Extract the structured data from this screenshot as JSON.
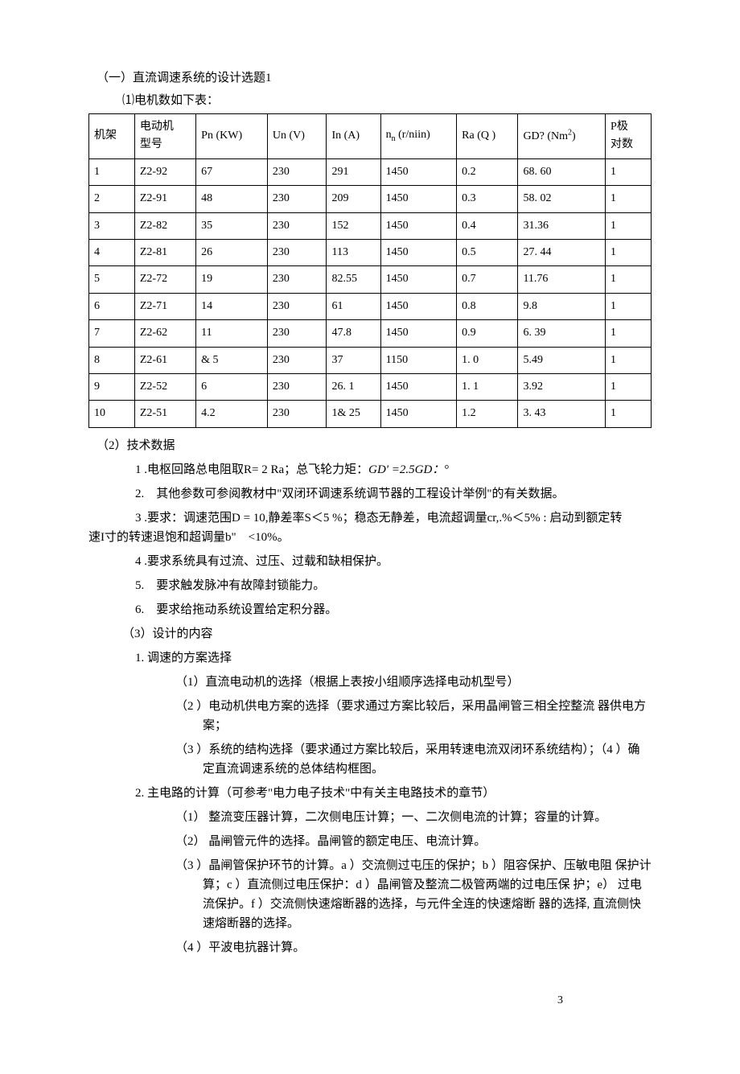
{
  "heading": "（一）直流调速系统的设计选题1",
  "subheading": "⑴电机数如下表：",
  "table": {
    "columns": [
      "机架",
      "电动机\n型号",
      "Pn (KW)",
      "Un (V)",
      "In (A)",
      "nₙ (r/niin)",
      "Ra (Q )",
      "GD? (Nm²)",
      "P极\n对数"
    ],
    "rows": [
      [
        "1",
        "Z2-92",
        "67",
        "230",
        "291",
        "1450",
        "0.2",
        "68. 60",
        "1"
      ],
      [
        "2",
        "Z2-91",
        "48",
        "230",
        "209",
        "1450",
        "0.3",
        "58. 02",
        "1"
      ],
      [
        "3",
        "Z2-82",
        "35",
        "230",
        "152",
        "1450",
        "0.4",
        "31.36",
        "1"
      ],
      [
        "4",
        "Z2-81",
        "26",
        "230",
        "113",
        "1450",
        "0.5",
        "27. 44",
        "1"
      ],
      [
        "5",
        "Z2-72",
        "19",
        "230",
        "82.55",
        "1450",
        "0.7",
        "11.76",
        "1"
      ],
      [
        "6",
        "Z2-71",
        "14",
        "230",
        "61",
        "1450",
        "0.8",
        "9.8",
        "1"
      ],
      [
        "7",
        "Z2-62",
        "11",
        "230",
        "47.8",
        "1450",
        "0.9",
        "6. 39",
        "1"
      ],
      [
        "8",
        "Z2-61",
        "& 5",
        "230",
        "37",
        "1150",
        "1. 0",
        "5.49",
        "1"
      ],
      [
        "9",
        "Z2-52",
        "6",
        "230",
        "26. 1",
        "1450",
        "1. 1",
        "3.92",
        "1"
      ],
      [
        "10",
        "Z2-51",
        "4.2",
        "230",
        "1& 25",
        "1450",
        "1.2",
        "3. 43",
        "1"
      ]
    ],
    "border_color": "#000000",
    "font_size": 14
  },
  "section2_label": "（2）技术数据",
  "items2": {
    "i1_a": "1 .电枢回路总电阻取R= 2 Ra；总飞轮力矩：",
    "i1_b": "GD' =2.5GD：",
    "i1_c": "°",
    "i2": "2.　其他参数可参阅教材中\"双闭环调速系统调节器的工程设计举例\"的有关数据。",
    "i3_line1": "3 .要求：调速范围D = 10,静差率S＜5 %；稳态无静差，电流超调量cr,.%＜5% : 启动到额定转",
    "i3_line2": "速I寸的转速退饱和超调量b\"　<10%。",
    "i4": "4 .要求系统具有过流、过压、过载和缺相保护。",
    "i5": "5.　要求触发脉冲有故障封锁能力。",
    "i6": "6.　要求给拖动系统设置给定积分器。"
  },
  "section3_label": "（3）设计的内容",
  "sub1_label": "1. 调速的方案选择",
  "sub1_items": {
    "a": "（1）直流电动机的选择（根据上表按小组顺序选择电动机型号）",
    "b": "（2 ）电动机供电方案的选择（要求通过方案比较后，采用晶闸管三相全控整流 器供电方案；",
    "c": "（3 ）系统的结构选择（要求通过方案比较后，采用转速电流双闭环系统结构）；（4 ）确定直流调速系统的总体结构框图。"
  },
  "sub2_label": "2. 主电路的计算（可参考\"电力电子技术\"中有关主电路技术的章节）",
  "sub2_items": {
    "a": "（1）  整流变压器计算，二次侧电压计算；一、二次侧电流的计算；容量的计算。",
    "b": "（2）  晶闸管元件的选择。晶闸管的额定电压、电流计算。",
    "c": "（3 ）晶闸管保护环节的计算。a ）交流侧过屯压的保护；b ）阻容保护、压敏电阻 保护计算；c ）直流侧过电压保护：d ）晶闸管及整流二极管两端的过电压保 护；e） 过电流保护。f ）交流侧快速熔断器的选择，与元件全连的快速熔断 器的选择, 直流侧快速熔断器的选择。",
    "d": "（4 ）平波电抗器计算。"
  },
  "page_number": "3"
}
